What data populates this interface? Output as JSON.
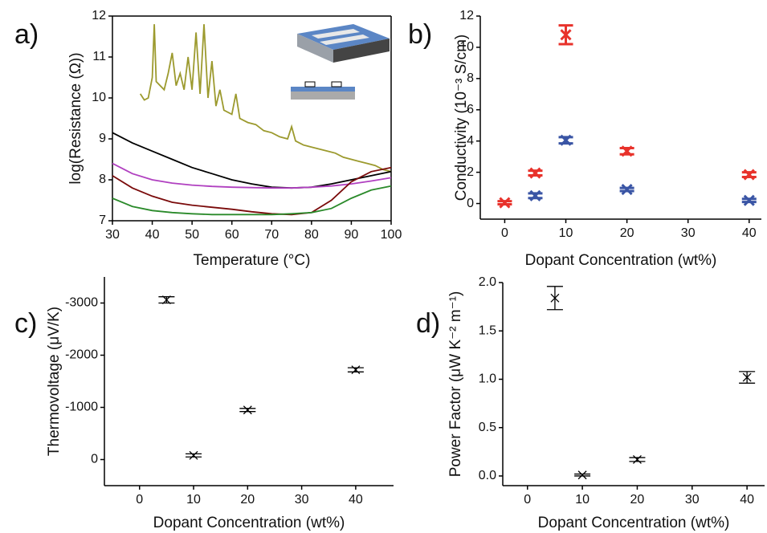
{
  "chart_data": [
    {
      "type": "line",
      "label": "a)",
      "xlabel": "Temperature (°C)",
      "ylabel": "log(Resistance (Ω))",
      "xlim": [
        30,
        100
      ],
      "ylim": [
        7,
        12
      ],
      "xticks": [
        30,
        40,
        50,
        60,
        70,
        80,
        90,
        100
      ],
      "yticks": [
        7,
        8,
        9,
        10,
        11,
        12
      ],
      "series": [
        {
          "color": "#9c9a2e",
          "x": [
            37,
            38,
            39,
            40,
            40.5,
            41,
            43,
            44,
            45,
            46,
            47,
            48,
            49,
            50,
            51,
            52,
            53,
            54,
            55,
            56,
            57,
            58,
            60,
            61,
            62,
            64,
            66,
            68,
            70,
            72,
            74,
            75,
            76,
            78,
            80,
            82,
            84,
            86,
            88,
            90,
            92,
            94,
            96,
            98,
            100
          ],
          "values": [
            10.1,
            9.95,
            10.0,
            10.5,
            11.8,
            10.4,
            10.2,
            10.6,
            11.1,
            10.3,
            10.6,
            10.2,
            11.0,
            10.2,
            11.6,
            10.1,
            11.8,
            10.0,
            10.9,
            9.8,
            10.2,
            9.7,
            9.6,
            10.1,
            9.5,
            9.4,
            9.35,
            9.2,
            9.15,
            9.05,
            9.0,
            9.3,
            8.95,
            8.85,
            8.8,
            8.75,
            8.7,
            8.65,
            8.55,
            8.5,
            8.45,
            8.4,
            8.35,
            8.25,
            8.2
          ]
        },
        {
          "color": "#000000",
          "x": [
            30,
            35,
            40,
            45,
            50,
            55,
            60,
            65,
            70,
            75,
            80,
            85,
            90,
            95,
            100
          ],
          "values": [
            9.15,
            8.9,
            8.7,
            8.5,
            8.3,
            8.15,
            8.0,
            7.9,
            7.82,
            7.8,
            7.82,
            7.9,
            8.0,
            8.1,
            8.2
          ]
        },
        {
          "color": "#b040c0",
          "x": [
            30,
            35,
            40,
            45,
            50,
            55,
            60,
            65,
            70,
            75,
            80,
            85,
            90,
            95,
            100
          ],
          "values": [
            8.4,
            8.15,
            8.0,
            7.92,
            7.87,
            7.84,
            7.82,
            7.81,
            7.8,
            7.8,
            7.82,
            7.85,
            7.9,
            7.97,
            8.05
          ]
        },
        {
          "color": "#7a0a0a",
          "x": [
            30,
            35,
            40,
            45,
            50,
            55,
            60,
            65,
            70,
            75,
            80,
            85,
            90,
            95,
            100
          ],
          "values": [
            8.1,
            7.8,
            7.6,
            7.45,
            7.38,
            7.33,
            7.28,
            7.22,
            7.17,
            7.15,
            7.2,
            7.5,
            7.95,
            8.2,
            8.3
          ]
        },
        {
          "color": "#2a8a2a",
          "x": [
            30,
            35,
            40,
            45,
            50,
            55,
            60,
            65,
            70,
            75,
            80,
            85,
            90,
            95,
            100
          ],
          "values": [
            7.55,
            7.35,
            7.25,
            7.2,
            7.17,
            7.15,
            7.15,
            7.15,
            7.15,
            7.17,
            7.2,
            7.3,
            7.55,
            7.75,
            7.85
          ]
        }
      ]
    },
    {
      "type": "scatter",
      "label": "b)",
      "xlabel": "Dopant Concentration (wt%)",
      "ylabel": "Conductivity (10⁻³ S/cm)",
      "xlim": [
        -4,
        42
      ],
      "ylim": [
        -1,
        12
      ],
      "xticks": [
        0,
        10,
        20,
        30,
        40
      ],
      "yticks": [
        0,
        2,
        4,
        6,
        8,
        10,
        12
      ],
      "series": [
        {
          "color": "#e8322b",
          "x": [
            0,
            5,
            10,
            20,
            40
          ],
          "values": [
            0.05,
            1.95,
            10.8,
            3.35,
            1.85
          ],
          "errors": [
            0.1,
            0.15,
            0.6,
            0.2,
            0.15
          ]
        },
        {
          "color": "#3a55a5",
          "x": [
            5,
            10,
            20,
            40
          ],
          "values": [
            0.5,
            4.05,
            0.9,
            0.2
          ],
          "errors": [
            0.15,
            0.2,
            0.1,
            0.1
          ]
        }
      ]
    },
    {
      "type": "scatter",
      "label": "c)",
      "xlabel": "Dopant Concentration (wt%)",
      "ylabel": "Thermovoltage (μV/K)",
      "xlim": [
        -6.5,
        47
      ],
      "ylim": [
        500,
        -3500
      ],
      "xticks": [
        0,
        10,
        20,
        30,
        40
      ],
      "yticks": [
        -3000,
        -2000,
        -1000,
        0
      ],
      "series": [
        {
          "color": "#000000",
          "x": [
            5,
            10,
            20,
            40
          ],
          "values": [
            -3060,
            -80,
            -950,
            -1720
          ],
          "errors": [
            60,
            30,
            30,
            40
          ]
        }
      ]
    },
    {
      "type": "scatter",
      "label": "d)",
      "xlabel": "Dopant Concentration (wt%)",
      "ylabel": "Power Factor (μW K⁻² m⁻¹)",
      "xlim": [
        -4.5,
        43.2
      ],
      "ylim": [
        -0.1,
        2.0
      ],
      "xticks": [
        0,
        10,
        20,
        30,
        40
      ],
      "yticks": [
        {
          "value": 0,
          "label": "0.0"
        },
        0.5,
        {
          "value": 1,
          "label": "1.0"
        },
        1.5,
        {
          "value": 2,
          "label": "2.0"
        }
      ],
      "series": [
        {
          "color": "#000000",
          "x": [
            5,
            10,
            20,
            40
          ],
          "values": [
            1.84,
            0.01,
            0.17,
            1.02
          ],
          "errors": [
            0.12,
            0.01,
            0.02,
            0.06
          ]
        }
      ]
    }
  ]
}
